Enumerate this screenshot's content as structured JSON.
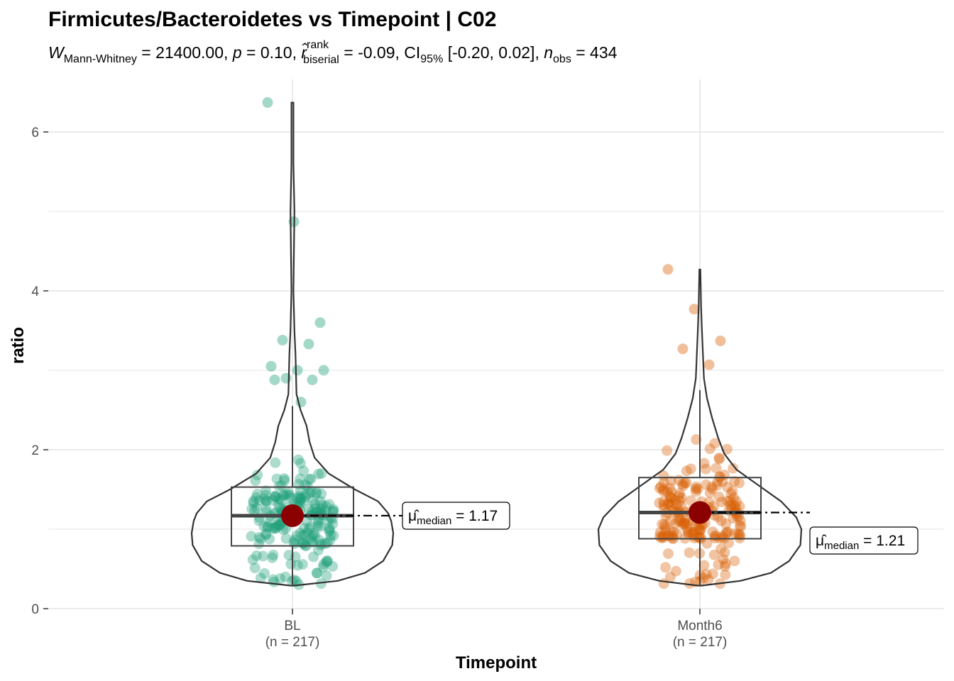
{
  "chart_data": {
    "type": "violin-box-scatter",
    "title": "Firmicutes/Bacteroidetes vs Timepoint | C02",
    "subtitle": {
      "W_symbol": "W",
      "W_sub": "Mann-Whitney",
      "W_value": " = 21400.00, ",
      "p_symbol": "p",
      "p_value": " = 0.10, ",
      "r_symbol": "r̂",
      "r_sup": "rank",
      "r_sub": "biserial",
      "r_value": " = -0.09, CI",
      "ci_sub": "95%",
      "ci_value": " [-0.20, 0.02], ",
      "n_symbol": "n",
      "n_sub": "obs",
      "n_value": " = 434"
    },
    "xlabel": "Timepoint",
    "ylabel": "ratio",
    "ylim": [
      -0.02,
      6.6
    ],
    "yticks": [
      0,
      2,
      4,
      6
    ],
    "grid": true,
    "groups": [
      {
        "name": "BL",
        "n_label": "(n = 217)",
        "color": "#1B9E77",
        "median": 1.17,
        "q1": 0.79,
        "q3": 1.53,
        "whisker_low": 0.29,
        "whisker_high": 2.55,
        "min": 0.29,
        "max": 6.37,
        "label_symbol": "μ̂",
        "label_sub": "median",
        "label_value": " = 1.17",
        "outliers": [
          6.37,
          4.87,
          3.6,
          3.38,
          3.33,
          3.05,
          3.0,
          3.0,
          2.9,
          2.88,
          2.88,
          2.6
        ]
      },
      {
        "name": "Month6",
        "n_label": "(n = 217)",
        "color": "#D95F02",
        "median": 1.21,
        "q1": 0.88,
        "q3": 1.65,
        "whisker_low": 0.29,
        "whisker_high": 2.75,
        "min": 0.29,
        "max": 4.27,
        "label_symbol": "μ̂",
        "label_sub": "median",
        "label_value": " = 1.21",
        "outliers": [
          4.27,
          3.77,
          3.37,
          3.27,
          3.07
        ]
      }
    ]
  },
  "colors": {
    "median_point": "#8B0000",
    "grid": "#ebebeb",
    "outline": "#333333"
  }
}
